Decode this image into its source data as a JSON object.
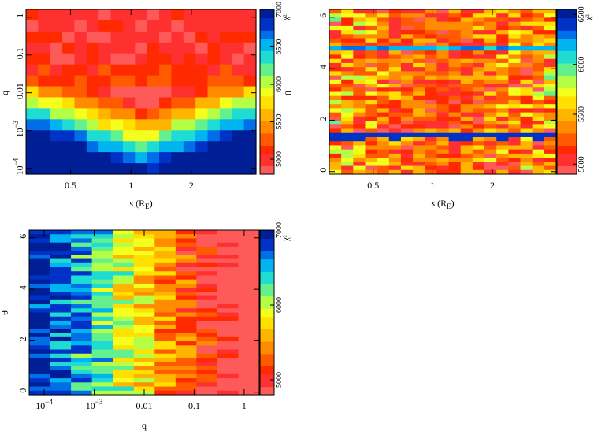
{
  "colormap": [
    "#ff5a5a",
    "#ff3030",
    "#ff2a00",
    "#ff5a00",
    "#ff8c00",
    "#ffb400",
    "#ffe000",
    "#f5ff1e",
    "#b4ff46",
    "#64f08c",
    "#1edcd2",
    "#00b4f0",
    "#006ee6",
    "#0032c8",
    "#001e96"
  ],
  "chart_data": [
    {
      "type": "heatmap",
      "title": "",
      "xlabel_main": "s (R",
      "xlabel_sub": "E",
      "xlabel_close": ")",
      "ylabel": "q",
      "xscale": "log",
      "yscale": "log",
      "xlim": [
        0.3,
        4.2
      ],
      "ylim": [
        7e-05,
        1.6
      ],
      "xticks": [
        {
          "value": 0.5,
          "label": "0.5"
        },
        {
          "value": 1,
          "label": "1"
        },
        {
          "value": 2,
          "label": "2"
        }
      ],
      "yticks": [
        {
          "value": 1,
          "label": "1"
        },
        {
          "value": 0.1,
          "label": "0.1"
        },
        {
          "value": 0.01,
          "label": "0.01"
        },
        {
          "value": 0.001,
          "base": "10",
          "exp": "−3"
        },
        {
          "value": 0.0001,
          "base": "10",
          "exp": "−4"
        }
      ],
      "grid_cols": 19,
      "grid_rows": 15,
      "pattern": "vee",
      "colorbar": {
        "label": "χ²",
        "min": 4800,
        "max": 7000,
        "ticks": [
          {
            "value": 5000,
            "label": "5000"
          },
          {
            "value": 5500,
            "label": "5500"
          },
          {
            "value": 6000,
            "label": "6000"
          },
          {
            "value": 6500,
            "label": "6500"
          },
          {
            "value": 7000,
            "label": "7000"
          }
        ]
      }
    },
    {
      "type": "heatmap",
      "title": "",
      "xlabel_main": "s (R",
      "xlabel_sub": "E",
      "xlabel_close": ")",
      "ylabel": "θ",
      "xscale": "log",
      "yscale": "linear",
      "xlim": [
        0.3,
        4.2
      ],
      "ylim": [
        -0.1,
        6.3
      ],
      "xticks": [
        {
          "value": 0.5,
          "label": "0.5"
        },
        {
          "value": 1,
          "label": "1"
        },
        {
          "value": 2,
          "label": "2"
        }
      ],
      "yticks": [
        {
          "value": 0,
          "label": "0"
        },
        {
          "value": 2,
          "label": "2"
        },
        {
          "value": 4,
          "label": "4"
        },
        {
          "value": 6,
          "label": "6"
        }
      ],
      "grid_cols": 19,
      "grid_rows": 40,
      "pattern": "noisy",
      "colorbar": {
        "label": "χ²",
        "min": 4900,
        "max": 6550,
        "ticks": [
          {
            "value": 5000,
            "label": "5000"
          },
          {
            "value": 5500,
            "label": "5500"
          },
          {
            "value": 6000,
            "label": "6000"
          },
          {
            "value": 6500,
            "label": "6500"
          }
        ]
      }
    },
    {
      "type": "heatmap",
      "title": "",
      "xlabel_main": "q",
      "xlabel_sub": "",
      "xlabel_close": "",
      "ylabel": "θ",
      "xscale": "log",
      "yscale": "linear",
      "xlim": [
        5e-05,
        2
      ],
      "ylim": [
        -0.1,
        6.3
      ],
      "xticks": [
        {
          "value": 0.0001,
          "base": "10",
          "exp": "−4"
        },
        {
          "value": 0.001,
          "base": "10",
          "exp": "−3"
        },
        {
          "value": 0.01,
          "label": "0.01"
        },
        {
          "value": 0.1,
          "label": "0.1"
        },
        {
          "value": 1,
          "label": "1"
        }
      ],
      "yticks": [
        {
          "value": 0,
          "label": "0"
        },
        {
          "value": 2,
          "label": "2"
        },
        {
          "value": 4,
          "label": "4"
        },
        {
          "value": 6,
          "label": "6"
        }
      ],
      "grid_cols": 11,
      "grid_rows": 40,
      "pattern": "gradient",
      "colorbar": {
        "label": "χ²",
        "min": 4800,
        "max": 7000,
        "ticks": [
          {
            "value": 5000,
            "label": "5000"
          },
          {
            "value": 6000,
            "label": "6000"
          },
          {
            "value": 7000,
            "label": "7000"
          }
        ]
      }
    }
  ]
}
